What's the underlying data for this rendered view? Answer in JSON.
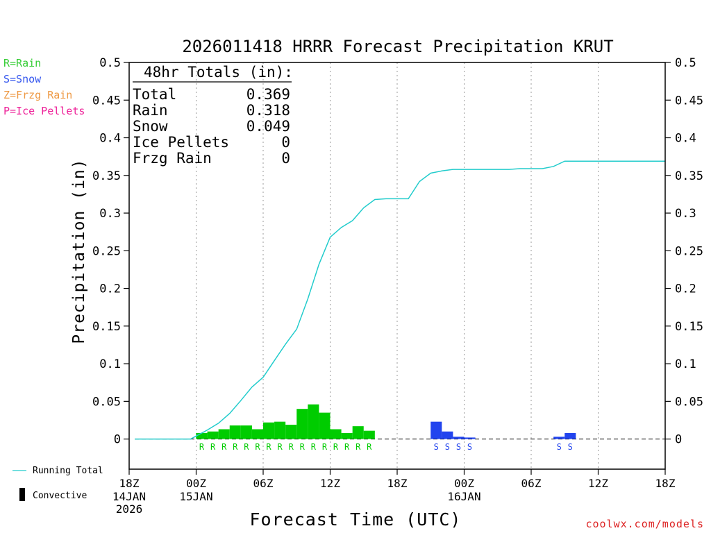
{
  "chart_data": {
    "type": "bar",
    "title": "2026011418 HRRR Forecast Precipitation KRUT",
    "xlabel": "Forecast Time (UTC)",
    "ylabel": "Precipitation (in)",
    "ylim": [
      -0.04,
      0.5
    ],
    "y_ticks": [
      "0.5",
      "0.45",
      "0.4",
      "0.35",
      "0.3",
      "0.25",
      "0.2",
      "0.15",
      "0.1",
      "0.05",
      "0"
    ],
    "y_tick_values": [
      0.5,
      0.45,
      0.4,
      0.35,
      0.3,
      0.25,
      0.2,
      0.15,
      0.1,
      0.05,
      0
    ],
    "xlim_hours": [
      0,
      48
    ],
    "x_ticks": [
      {
        "hour": 0,
        "label": "18Z",
        "sub": [
          "14JAN",
          "2026"
        ]
      },
      {
        "hour": 6,
        "label": "00Z",
        "sub": [
          "15JAN"
        ]
      },
      {
        "hour": 12,
        "label": "06Z",
        "sub": []
      },
      {
        "hour": 18,
        "label": "12Z",
        "sub": []
      },
      {
        "hour": 24,
        "label": "18Z",
        "sub": []
      },
      {
        "hour": 30,
        "label": "00Z",
        "sub": [
          "16JAN"
        ]
      },
      {
        "hour": 36,
        "label": "06Z",
        "sub": []
      },
      {
        "hour": 42,
        "label": "12Z",
        "sub": []
      },
      {
        "hour": 48,
        "label": "18Z",
        "sub": []
      }
    ],
    "grid": {
      "vertical_dotted_hours": [
        6,
        12,
        18,
        24,
        30,
        36,
        42
      ],
      "zero_line_dashed": true
    },
    "totals_box": {
      "heading": "48hr Totals (in):",
      "rows": [
        {
          "label": "Total",
          "value": "0.369"
        },
        {
          "label": "Rain",
          "value": "0.318"
        },
        {
          "label": "Snow",
          "value": "0.049"
        },
        {
          "label": "Ice Pellets",
          "value": "0"
        },
        {
          "label": "Frzg Rain",
          "value": "0"
        }
      ]
    },
    "type_legend": [
      {
        "text": "R=Rain",
        "color": "#33cc33"
      },
      {
        "text": "S=Snow",
        "color": "#3355ee"
      },
      {
        "text": "Z=Frzg Rain",
        "color": "#ee9944"
      },
      {
        "text": "P=Ice Pellets",
        "color": "#ee2299"
      }
    ],
    "bottom_legend": {
      "running_total": "Running Total",
      "convective": "Convective"
    },
    "series": [
      {
        "kind": "rain-bars",
        "color": "#00cc00",
        "symbol": "R",
        "bars": [
          {
            "hour": 6,
            "value": 0.008
          },
          {
            "hour": 7,
            "value": 0.01
          },
          {
            "hour": 8,
            "value": 0.013
          },
          {
            "hour": 9,
            "value": 0.018
          },
          {
            "hour": 10,
            "value": 0.018
          },
          {
            "hour": 11,
            "value": 0.013
          },
          {
            "hour": 12,
            "value": 0.022
          },
          {
            "hour": 13,
            "value": 0.023
          },
          {
            "hour": 14,
            "value": 0.019
          },
          {
            "hour": 15,
            "value": 0.04
          },
          {
            "hour": 16,
            "value": 0.046
          },
          {
            "hour": 17,
            "value": 0.035
          },
          {
            "hour": 18,
            "value": 0.013
          },
          {
            "hour": 19,
            "value": 0.008
          },
          {
            "hour": 20,
            "value": 0.017
          },
          {
            "hour": 21,
            "value": 0.011
          }
        ]
      },
      {
        "kind": "snow-bars",
        "color": "#2244ee",
        "symbol": "S",
        "bars": [
          {
            "hour": 27,
            "value": 0.023
          },
          {
            "hour": 28,
            "value": 0.01
          },
          {
            "hour": 29,
            "value": 0.003
          },
          {
            "hour": 30,
            "value": 0.002
          },
          {
            "hour": 38,
            "value": 0.003
          },
          {
            "hour": 39,
            "value": 0.008
          }
        ]
      },
      {
        "kind": "running-total-line",
        "color": "#22cccc",
        "points": [
          [
            0.5,
            0
          ],
          [
            5.5,
            0
          ],
          [
            6,
            0.004
          ],
          [
            7,
            0.012
          ],
          [
            8,
            0.021
          ],
          [
            9,
            0.034
          ],
          [
            10,
            0.051
          ],
          [
            11,
            0.069
          ],
          [
            12,
            0.082
          ],
          [
            13,
            0.104
          ],
          [
            14,
            0.126
          ],
          [
            15,
            0.146
          ],
          [
            16,
            0.186
          ],
          [
            17,
            0.232
          ],
          [
            18,
            0.268
          ],
          [
            19,
            0.281
          ],
          [
            20,
            0.29
          ],
          [
            21,
            0.307
          ],
          [
            22,
            0.318
          ],
          [
            23,
            0.319
          ],
          [
            24,
            0.319
          ],
          [
            25,
            0.319
          ],
          [
            26,
            0.342
          ],
          [
            27,
            0.353
          ],
          [
            28,
            0.356
          ],
          [
            29,
            0.358
          ],
          [
            30,
            0.358
          ],
          [
            31,
            0.358
          ],
          [
            32,
            0.358
          ],
          [
            33,
            0.358
          ],
          [
            34,
            0.358
          ],
          [
            35,
            0.359
          ],
          [
            36,
            0.359
          ],
          [
            37,
            0.359
          ],
          [
            38,
            0.362
          ],
          [
            39,
            0.369
          ],
          [
            40,
            0.369
          ],
          [
            42,
            0.369
          ],
          [
            44,
            0.369
          ],
          [
            46,
            0.369
          ],
          [
            48,
            0.369
          ]
        ]
      }
    ]
  },
  "credit": "coolwx.com/models"
}
